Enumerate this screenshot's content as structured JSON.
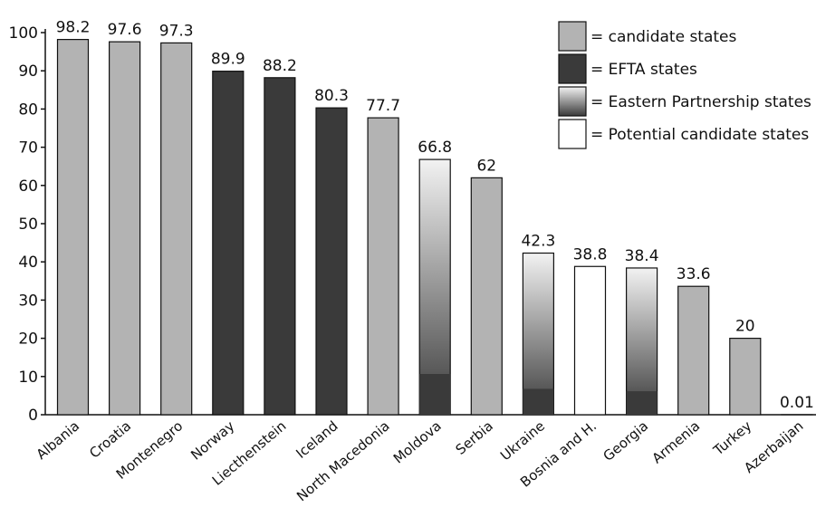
{
  "chart_data": {
    "type": "bar",
    "categories": [
      "Albania",
      "Croatia",
      "Montenegro",
      "Norway",
      "Liecthenstein",
      "Iceland",
      "North Macedonia",
      "Moldova",
      "Serbia",
      "Ukraine",
      "Bosnia and H.",
      "Georgia",
      "Armenia",
      "Turkey",
      "Azerbaijan"
    ],
    "values": [
      98.2,
      97.6,
      97.3,
      89.9,
      88.2,
      80.3,
      77.7,
      66.8,
      62,
      42.3,
      38.8,
      38.4,
      33.6,
      20,
      0.01
    ],
    "value_labels": [
      "98.2",
      "97.6",
      "97.3",
      "89.9",
      "88.2",
      "80.3",
      "77.7",
      "66.8",
      "62",
      "42.3",
      "38.8",
      "38.4",
      "33.6",
      "20",
      "0.01"
    ],
    "groups": [
      "candidate",
      "candidate",
      "candidate",
      "efta",
      "efta",
      "efta",
      "candidate",
      "eastern",
      "candidate",
      "eastern",
      "potential",
      "eastern",
      "candidate",
      "candidate",
      "eastern"
    ],
    "ylim": [
      0,
      100
    ],
    "yticks": [
      "0",
      "10",
      "20",
      "30",
      "40",
      "50",
      "60",
      "70",
      "80",
      "90",
      "100"
    ],
    "legend": {
      "position": "top-right",
      "items": [
        {
          "key": "candidate",
          "label": "= candidate states"
        },
        {
          "key": "efta",
          "label": "= EFTA states"
        },
        {
          "key": "eastern",
          "label": "= Eastern Partnership states"
        },
        {
          "key": "potential",
          "label": "= Potential candidate states"
        }
      ]
    },
    "colors": {
      "candidate": "#b3b3b3",
      "efta": "#3a3a3a",
      "eastern_top": "#f2f2f2",
      "eastern_bottom": "#3a3a3a",
      "potential": "#ffffff",
      "outline": "#111111"
    },
    "grid": false
  }
}
